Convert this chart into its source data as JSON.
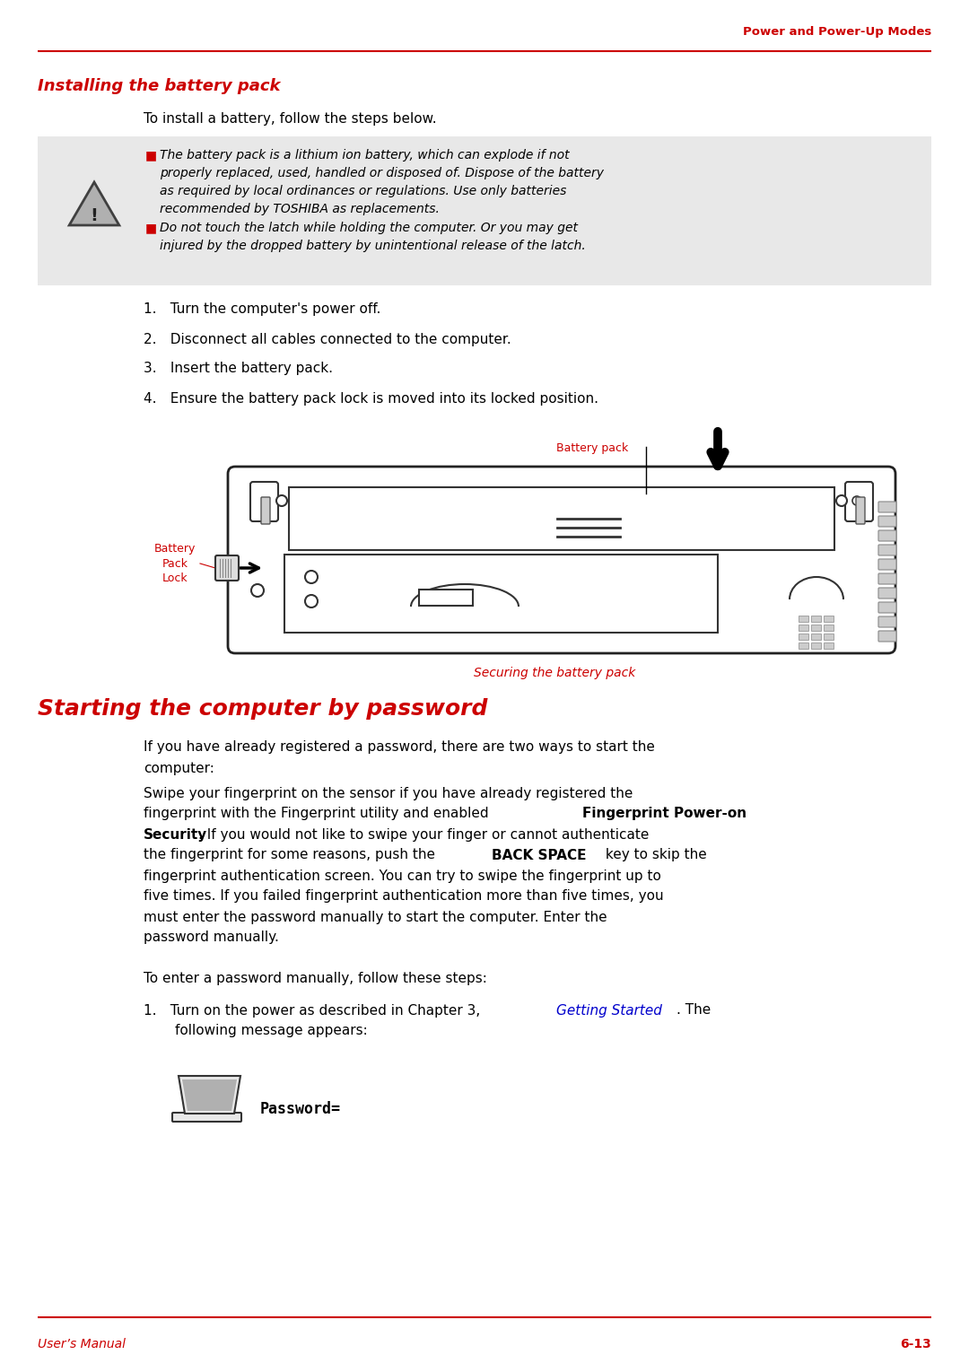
{
  "bg_color": "#ffffff",
  "red_color": "#cc0000",
  "text_color": "#000000",
  "gray_bg": "#e8e8e8",
  "header_text": "Power and Power-Up Modes",
  "section1_title": "Installing the battery pack",
  "intro_text": "To install a battery, follow the steps below.",
  "warning1_lines": [
    "The battery pack is a lithium ion battery, which can explode if not",
    "properly replaced, used, handled or disposed of. Dispose of the battery",
    "as required by local ordinances or regulations. Use only batteries",
    "recommended by TOSHIBA as replacements."
  ],
  "warning2_lines": [
    "Do not touch the latch while holding the computer. Or you may get",
    "injured by the dropped battery by unintentional release of the latch."
  ],
  "steps": [
    "Turn the computer's power off.",
    "Disconnect all cables connected to the computer.",
    "Insert the battery pack.",
    "Ensure the battery pack lock is moved into its locked position."
  ],
  "battery_pack_label": "Battery pack",
  "battery_lock_label": "Battery\nPack\nLock",
  "securing_label": "Securing the battery pack",
  "section2_title": "Starting the computer by password",
  "p1_lines": [
    "If you have already registered a password, there are two ways to start the",
    "computer:"
  ],
  "p2_lines": [
    [
      "Swipe your fingerprint on the sensor if you have already registered the",
      "normal"
    ],
    [
      "fingerprint with the Fingerprint utility and enabled ",
      "normal"
    ],
    [
      "Fingerprint Power-on",
      "bold"
    ],
    [
      "Security",
      "bold"
    ],
    [
      ". If you would not like to swipe your finger or cannot authenticate",
      "normal"
    ],
    [
      "the fingerprint for some reasons, push the ",
      "normal"
    ],
    [
      "BACK SPACE",
      "bold"
    ],
    [
      " key to skip the",
      "normal"
    ],
    [
      "fingerprint authentication screen. You can try to swipe the fingerprint up to",
      "normal"
    ],
    [
      "five times. If you failed fingerprint authentication more than five times, you",
      "normal"
    ],
    [
      "must enter the password manually to start the computer. Enter the",
      "normal"
    ],
    [
      "password manually.",
      "normal"
    ]
  ],
  "para3": "To enter a password manually, follow these steps:",
  "step1_normal": "Turn on the power as described in Chapter 3, ",
  "step1_link": "Getting Started",
  "step1_post": ". The",
  "step1_cont": "following message appears:",
  "password_label": "Password=",
  "footer_left": "User’s Manual",
  "footer_right": "6-13",
  "link_color": "#0000cc"
}
